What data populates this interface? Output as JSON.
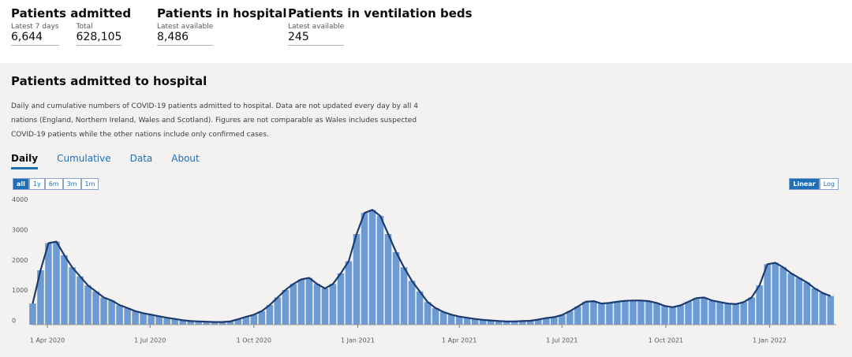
{
  "header": {
    "cards": [
      {
        "title": "Patients admitted",
        "stats": [
          {
            "label": "Latest 7 days",
            "value": "6,644"
          },
          {
            "label": "Total",
            "value": "628,105"
          }
        ]
      },
      {
        "title": "Patients in hospital",
        "stats": [
          {
            "label": "Latest available",
            "value": "8,486"
          }
        ]
      },
      {
        "title": "Patients in ventilation beds",
        "stats": [
          {
            "label": "Latest available",
            "value": "245"
          }
        ]
      }
    ]
  },
  "section": {
    "title": "Patients admitted to hospital",
    "description": "Daily and cumulative numbers of COVID-19 patients admitted to hospital. Data are not updated every day by all 4 nations (England, Northern Ireland, Wales and Scotland). Figures are not comparable as Wales includes suspected COVID-19 patients while the other nations include only confirmed cases.",
    "tabs": [
      "Daily",
      "Cumulative",
      "Data",
      "About"
    ],
    "range_buttons": [
      "all",
      "1y",
      "6m",
      "3m",
      "1m"
    ],
    "scale_buttons": [
      "Linear",
      "Log"
    ]
  },
  "chart_data": {
    "type": "bar",
    "log_scale": false,
    "grid": false,
    "bar_color": "#6b9bd2",
    "line_color": "#1d3a6e",
    "xlim": [
      "2020-03-18",
      "2022-03-01"
    ],
    "xticks": [
      {
        "value": "2020-04-01",
        "label": "1 Apr 2020"
      },
      {
        "value": "2020-07-01",
        "label": "1 Jul 2020"
      },
      {
        "value": "2020-10-01",
        "label": "1 Oct 2020"
      },
      {
        "value": "2021-01-01",
        "label": "1 Jan 2021"
      },
      {
        "value": "2021-04-01",
        "label": "1 Apr 2021"
      },
      {
        "value": "2021-07-01",
        "label": "1 Jul 2021"
      },
      {
        "value": "2021-10-01",
        "label": "1 Oct 2021"
      },
      {
        "value": "2022-01-01",
        "label": "1 Jan 2022"
      }
    ],
    "ylim": [
      0,
      4200
    ],
    "yticks": [
      0,
      1000,
      2000,
      3000,
      4000
    ],
    "x": [
      "2020-03-19",
      "2020-03-26",
      "2020-04-02",
      "2020-04-09",
      "2020-04-16",
      "2020-04-23",
      "2020-04-30",
      "2020-05-07",
      "2020-05-14",
      "2020-05-21",
      "2020-05-28",
      "2020-06-04",
      "2020-06-11",
      "2020-06-18",
      "2020-06-25",
      "2020-07-02",
      "2020-07-09",
      "2020-07-16",
      "2020-07-23",
      "2020-07-30",
      "2020-08-06",
      "2020-08-13",
      "2020-08-20",
      "2020-08-27",
      "2020-09-03",
      "2020-09-10",
      "2020-09-17",
      "2020-09-24",
      "2020-10-01",
      "2020-10-08",
      "2020-10-15",
      "2020-10-22",
      "2020-10-29",
      "2020-11-05",
      "2020-11-12",
      "2020-11-19",
      "2020-11-26",
      "2020-12-03",
      "2020-12-10",
      "2020-12-17",
      "2020-12-24",
      "2020-12-31",
      "2021-01-07",
      "2021-01-14",
      "2021-01-21",
      "2021-01-28",
      "2021-02-04",
      "2021-02-11",
      "2021-02-18",
      "2021-02-25",
      "2021-03-04",
      "2021-03-11",
      "2021-03-18",
      "2021-03-25",
      "2021-04-01",
      "2021-04-08",
      "2021-04-15",
      "2021-04-22",
      "2021-04-29",
      "2021-05-06",
      "2021-05-13",
      "2021-05-20",
      "2021-05-27",
      "2021-06-03",
      "2021-06-10",
      "2021-06-17",
      "2021-06-24",
      "2021-07-01",
      "2021-07-08",
      "2021-07-15",
      "2021-07-22",
      "2021-07-29",
      "2021-08-05",
      "2021-08-12",
      "2021-08-19",
      "2021-08-26",
      "2021-09-02",
      "2021-09-09",
      "2021-09-16",
      "2021-09-23",
      "2021-09-30",
      "2021-10-07",
      "2021-10-14",
      "2021-10-21",
      "2021-10-28",
      "2021-11-04",
      "2021-11-11",
      "2021-11-18",
      "2021-11-25",
      "2021-12-02",
      "2021-12-09",
      "2021-12-16",
      "2021-12-23",
      "2021-12-30",
      "2022-01-06",
      "2022-01-13",
      "2022-01-20",
      "2022-01-27",
      "2022-02-03",
      "2022-02-10",
      "2022-02-17",
      "2022-02-24"
    ],
    "values": [
      700,
      1800,
      2700,
      2750,
      2300,
      1900,
      1600,
      1300,
      1100,
      900,
      800,
      650,
      550,
      450,
      380,
      330,
      280,
      230,
      190,
      150,
      120,
      110,
      100,
      90,
      90,
      110,
      180,
      260,
      330,
      450,
      650,
      900,
      1150,
      1350,
      1500,
      1550,
      1350,
      1200,
      1350,
      1700,
      2100,
      3000,
      3700,
      3800,
      3600,
      3000,
      2400,
      1900,
      1450,
      1100,
      750,
      550,
      420,
      330,
      270,
      230,
      190,
      160,
      140,
      120,
      110,
      110,
      120,
      130,
      170,
      220,
      250,
      320,
      450,
      600,
      760,
      780,
      700,
      720,
      760,
      790,
      800,
      800,
      780,
      720,
      620,
      580,
      640,
      760,
      880,
      900,
      800,
      750,
      700,
      680,
      750,
      900,
      1300,
      2000,
      2050,
      1900,
      1700,
      1550,
      1400,
      1200,
      1050,
      950
    ]
  }
}
